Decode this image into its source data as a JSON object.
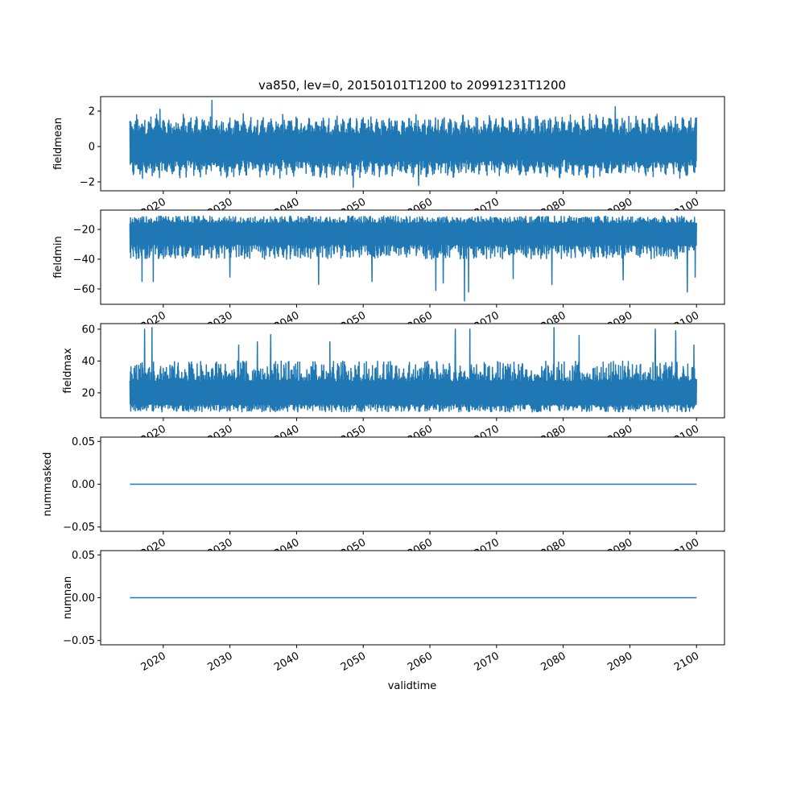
{
  "chart_data": {
    "type": "line",
    "title": "va850, lev=0, 20150101T1200 to 20991231T1200",
    "xlabel": "validtime",
    "xlim": [
      2010.6,
      2104.2
    ],
    "x_range": [
      2015.0,
      2100.0
    ],
    "x_ticks": [
      2020,
      2030,
      2040,
      2050,
      2060,
      2070,
      2080,
      2090,
      2100
    ],
    "x_tick_labels": [
      "2020",
      "2030",
      "2040",
      "2050",
      "2060",
      "2070",
      "2080",
      "2090",
      "2100"
    ],
    "color": "#1f77b4",
    "panels": [
      {
        "ylabel": "fieldmean",
        "ylim": [
          -2.5,
          2.82
        ],
        "y_ticks": [
          -2,
          0,
          2
        ],
        "y_tick_labels": [
          "−2",
          "0",
          "2"
        ],
        "typical_upper": [
          0.6,
          1.9
        ],
        "typical_lower": [
          -1.8,
          -0.7
        ],
        "seasonal": true,
        "spikes": [
          [
            2027.3,
            2.6
          ],
          [
            2048.5,
            -2.3
          ],
          [
            2058.3,
            -2.2
          ],
          [
            2087.8,
            2.25
          ],
          [
            2016.9,
            -1.8
          ],
          [
            2019.5,
            2.1
          ]
        ]
      },
      {
        "ylabel": "fieldmin",
        "ylim": [
          -70.3,
          -7.0
        ],
        "y_ticks": [
          -60,
          -40,
          -20
        ],
        "y_tick_labels": [
          "−60",
          "−40",
          "−20"
        ],
        "typical_upper": [
          -16,
          -11
        ],
        "typical_lower": [
          -40,
          -30
        ],
        "seasonal": false,
        "spikes": [
          [
            2016.8,
            -55
          ],
          [
            2018.5,
            -55
          ],
          [
            2030.0,
            -52
          ],
          [
            2043.3,
            -57
          ],
          [
            2051.3,
            -55
          ],
          [
            2060.9,
            -61
          ],
          [
            2062.0,
            -56
          ],
          [
            2065.2,
            -68
          ],
          [
            2065.8,
            -62
          ],
          [
            2072.5,
            -53
          ],
          [
            2078.3,
            -57
          ],
          [
            2089.0,
            -54
          ],
          [
            2098.6,
            -62
          ],
          [
            2099.8,
            -52
          ]
        ],
        "ylabel_note": ""
      },
      {
        "ylabel": "fieldmax",
        "ylim": [
          4.3,
          63.5
        ],
        "y_ticks": [
          20,
          40,
          60
        ],
        "y_tick_labels": [
          "20",
          "40",
          "60"
        ],
        "typical_upper": [
          27,
          40
        ],
        "typical_lower": [
          8,
          13
        ],
        "seasonal": false,
        "spikes": [
          [
            2017.2,
            60
          ],
          [
            2018.3,
            61
          ],
          [
            2031.3,
            50
          ],
          [
            2034.1,
            52
          ],
          [
            2036.1,
            56.5
          ],
          [
            2045.0,
            52
          ],
          [
            2063.8,
            60
          ],
          [
            2066.0,
            60
          ],
          [
            2078.6,
            61
          ],
          [
            2082.4,
            56
          ],
          [
            2093.8,
            60
          ],
          [
            2096.9,
            59
          ],
          [
            2099.6,
            50
          ]
        ]
      },
      {
        "ylabel": "nummasked",
        "ylim": [
          -0.055,
          0.055
        ],
        "y_ticks": [
          -0.05,
          0.0,
          0.05
        ],
        "y_tick_labels": [
          "−0.05",
          "0.00",
          "0.05"
        ],
        "constant": 0
      },
      {
        "ylabel": "numnan",
        "ylim": [
          -0.055,
          0.055
        ],
        "y_ticks": [
          -0.05,
          0.0,
          0.05
        ],
        "y_tick_labels": [
          "−0.05",
          "0.00",
          "0.05"
        ],
        "constant": 0
      }
    ]
  }
}
